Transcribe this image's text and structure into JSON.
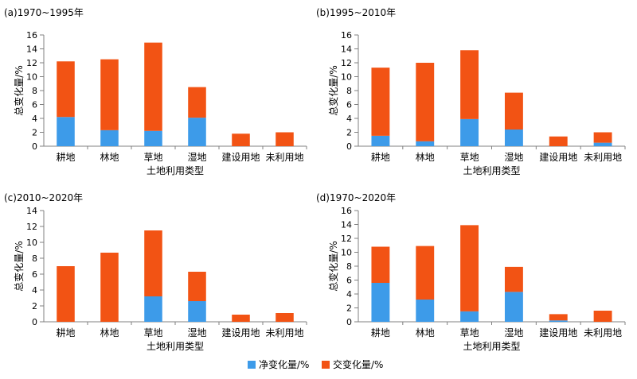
{
  "chart_data": [
    {
      "type": "bar",
      "stacked": true,
      "title": "(a)1970~1995年",
      "categories": [
        "耕地",
        "林地",
        "草地",
        "湿地",
        "建设用地",
        "未利用地"
      ],
      "series": [
        {
          "name": "净变化量/%",
          "values": [
            4.2,
            2.3,
            2.2,
            4.1,
            0.0,
            0.0
          ]
        },
        {
          "name": "交变化量/%",
          "values": [
            8.0,
            10.2,
            12.7,
            4.4,
            1.8,
            2.0
          ]
        }
      ],
      "xlabel": "土地利用类型",
      "ylabel": "总变化量/%",
      "ylim": [
        0,
        16
      ],
      "yticks": [
        "0",
        "2",
        "4",
        "6",
        "8",
        "10",
        "12",
        "14",
        "16"
      ]
    },
    {
      "type": "bar",
      "stacked": true,
      "title": "(b)1995~2010年",
      "categories": [
        "耕地",
        "林地",
        "草地",
        "湿地",
        "建设用地",
        "未利用地"
      ],
      "series": [
        {
          "name": "净变化量/%",
          "values": [
            1.5,
            0.7,
            3.9,
            2.4,
            0.0,
            0.5
          ]
        },
        {
          "name": "交变化量/%",
          "values": [
            9.8,
            11.3,
            9.9,
            5.3,
            1.4,
            1.5
          ]
        }
      ],
      "xlabel": "土地利用类型",
      "ylabel": "总变化量/%",
      "ylim": [
        0,
        16
      ],
      "yticks": [
        "0",
        "2",
        "4",
        "6",
        "8",
        "10",
        "12",
        "14",
        "16"
      ]
    },
    {
      "type": "bar",
      "stacked": true,
      "title": "(c)2010~2020年",
      "categories": [
        "耕地",
        "林地",
        "草地",
        "湿地",
        "建设用地",
        "未利用地"
      ],
      "series": [
        {
          "name": "净变化量/%",
          "values": [
            0.0,
            0.0,
            3.2,
            2.6,
            0.0,
            0.0
          ]
        },
        {
          "name": "交变化量/%",
          "values": [
            7.0,
            8.7,
            8.3,
            3.7,
            0.9,
            1.1
          ]
        }
      ],
      "xlabel": "土地利用类型",
      "ylabel": "总变化量/%",
      "ylim": [
        0,
        14
      ],
      "yticks": [
        "0",
        "2",
        "4",
        "6",
        "8",
        "10",
        "12",
        "14"
      ]
    },
    {
      "type": "bar",
      "stacked": true,
      "title": "(d)1970~2020年",
      "categories": [
        "耕地",
        "林地",
        "草地",
        "湿地",
        "建设用地",
        "未利用地"
      ],
      "series": [
        {
          "name": "净变化量/%",
          "values": [
            5.6,
            3.2,
            1.5,
            4.3,
            0.2,
            0.0
          ]
        },
        {
          "name": "交变化量/%",
          "values": [
            5.2,
            7.7,
            12.4,
            3.6,
            0.9,
            1.6
          ]
        }
      ],
      "xlabel": "土地利用类型",
      "ylabel": "总变化量/%",
      "ylim": [
        0,
        16
      ],
      "yticks": [
        "0",
        "2",
        "4",
        "6",
        "8",
        "10",
        "12",
        "14",
        "16"
      ]
    }
  ],
  "legend": [
    {
      "label": "净变化量/%",
      "color": "#3d9be9"
    },
    {
      "label": "交变化量/%",
      "color": "#f25314"
    }
  ],
  "colors": {
    "net": "#3d9be9",
    "swap": "#f25314",
    "axis": "#808080"
  }
}
